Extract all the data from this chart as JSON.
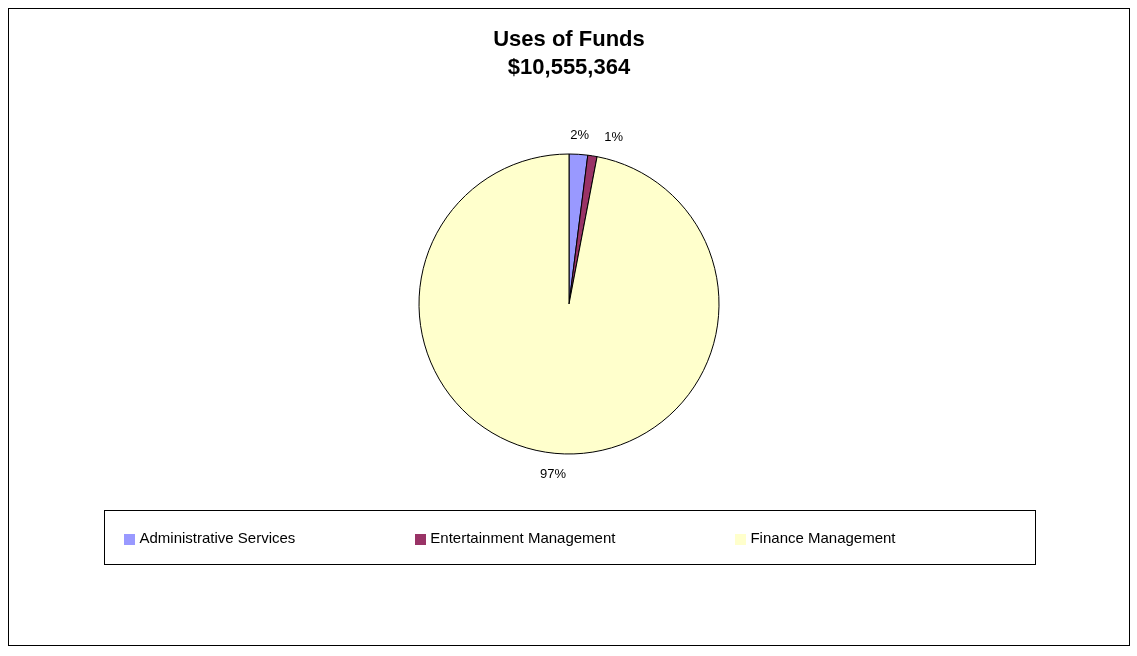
{
  "chart_data": {
    "type": "pie",
    "title": "Uses of Funds",
    "subtitle": "$10,555,364",
    "categories": [
      "Administrative Services",
      "Entertainment Management",
      "Finance Management"
    ],
    "values": [
      2,
      1,
      97
    ],
    "colors": [
      "#9999ff",
      "#993366",
      "#ffffcc"
    ],
    "value_labels": [
      "2%",
      "1%",
      "97%"
    ],
    "legend": "bottom"
  }
}
